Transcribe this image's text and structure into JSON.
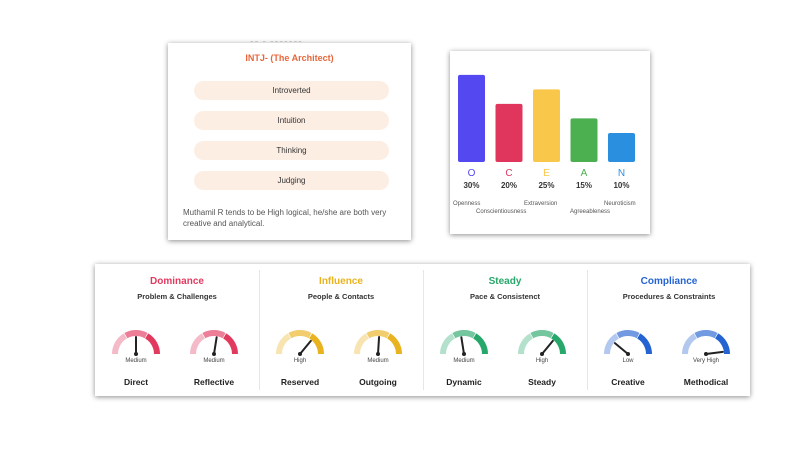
{
  "mbti": {
    "title": "INTJ- (The Architect)",
    "traits": [
      "Introverted",
      "Intuition",
      "Thinking",
      "Judging"
    ],
    "description": "Muthamil R tends to be High logical, he/she are both very creative and analytical."
  },
  "chart_data": {
    "type": "bar",
    "categories": [
      "O",
      "C",
      "E",
      "A",
      "N"
    ],
    "values": [
      30,
      20,
      25,
      15,
      10
    ],
    "value_labels": [
      "30%",
      "20%",
      "25%",
      "15%",
      "10%"
    ],
    "trait_names": [
      "Openness",
      "Conscientiousness",
      "Extraversion",
      "Agreeableness",
      "Neuroticism"
    ],
    "colors": [
      "#5448f0",
      "#e0365e",
      "#f9c74a",
      "#4caf50",
      "#2b8fe0"
    ],
    "ylim": [
      0,
      32
    ]
  },
  "disc": [
    {
      "title": "Dominance",
      "subtitle": "Problem & Challenges",
      "color": "#e23a5f",
      "gauges": [
        {
          "level": "Medium",
          "label": "Direct",
          "value": 0.5
        },
        {
          "level": "Medium",
          "label": "Reflective",
          "value": 0.55
        }
      ]
    },
    {
      "title": "Influence",
      "subtitle": "People & Contacts",
      "color": "#e9b21f",
      "gauges": [
        {
          "level": "High",
          "label": "Reserved",
          "value": 0.72
        },
        {
          "level": "Medium",
          "label": "Outgoing",
          "value": 0.52
        }
      ]
    },
    {
      "title": "Steady",
      "subtitle": "Pace & Consistenct",
      "color": "#27a86a",
      "gauges": [
        {
          "level": "Medium",
          "label": "Dynamic",
          "value": 0.45
        },
        {
          "level": "High",
          "label": "Steady",
          "value": 0.72
        }
      ]
    },
    {
      "title": "Compliance",
      "subtitle": "Procedures & Constraints",
      "color": "#2463d1",
      "gauges": [
        {
          "level": "Low",
          "label": "Creative",
          "value": 0.22
        },
        {
          "level": "Very High",
          "label": "Methodical",
          "value": 0.96
        }
      ]
    }
  ]
}
